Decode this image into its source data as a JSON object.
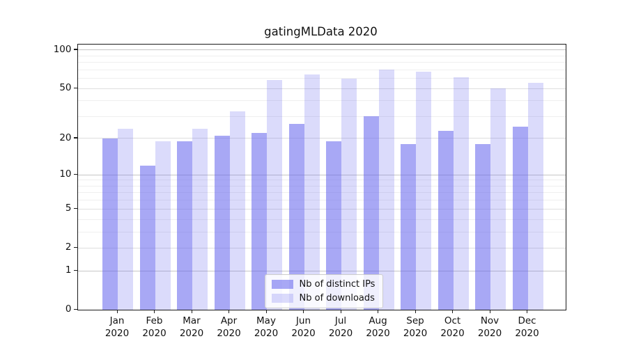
{
  "title": "gatingMLData 2020",
  "chart_data": {
    "type": "bar",
    "title": "gatingMLData 2020",
    "categories": [
      "Jan",
      "Feb",
      "Mar",
      "Apr",
      "May",
      "Jun",
      "Jul",
      "Aug",
      "Sep",
      "Oct",
      "Nov",
      "Dec"
    ],
    "x_year_line": "2020",
    "series": [
      {
        "name": "Nb of distinct IPs",
        "color": "rgba(102,102,238,0.57)",
        "color_hex_approx": "#a8a8f6",
        "values": [
          20,
          12,
          19,
          21,
          22,
          26,
          19,
          30,
          18,
          23,
          18,
          25
        ]
      },
      {
        "name": "Nb of downloads",
        "color": "rgba(102,102,238,0.235)",
        "color_hex_approx": "#dbdbf8",
        "values": [
          24,
          19,
          24,
          33,
          58,
          64,
          60,
          70,
          68,
          61,
          50,
          55
        ]
      }
    ],
    "y_scale": "log1p",
    "y_ticks": [
      0,
      1,
      2,
      5,
      10,
      20,
      50,
      100
    ],
    "ylim": [
      0,
      107
    ],
    "gridlines": {
      "major": [
        1,
        10,
        100
      ],
      "mid": [
        2,
        5,
        20,
        50
      ],
      "minor": [
        3,
        4,
        6,
        7,
        8,
        9,
        30,
        40,
        60,
        70,
        80,
        90
      ]
    },
    "grid": true,
    "legend_position": "lower center",
    "style": {
      "axis_color": "#1a1a1a",
      "text_color": "#111111",
      "major_grid_color": "#c6c6c6",
      "minor_grid_color": "#efefef",
      "background": "#ffffff"
    }
  },
  "legend": {
    "item1": "Nb of distinct IPs",
    "item2": "Nb of downloads"
  }
}
